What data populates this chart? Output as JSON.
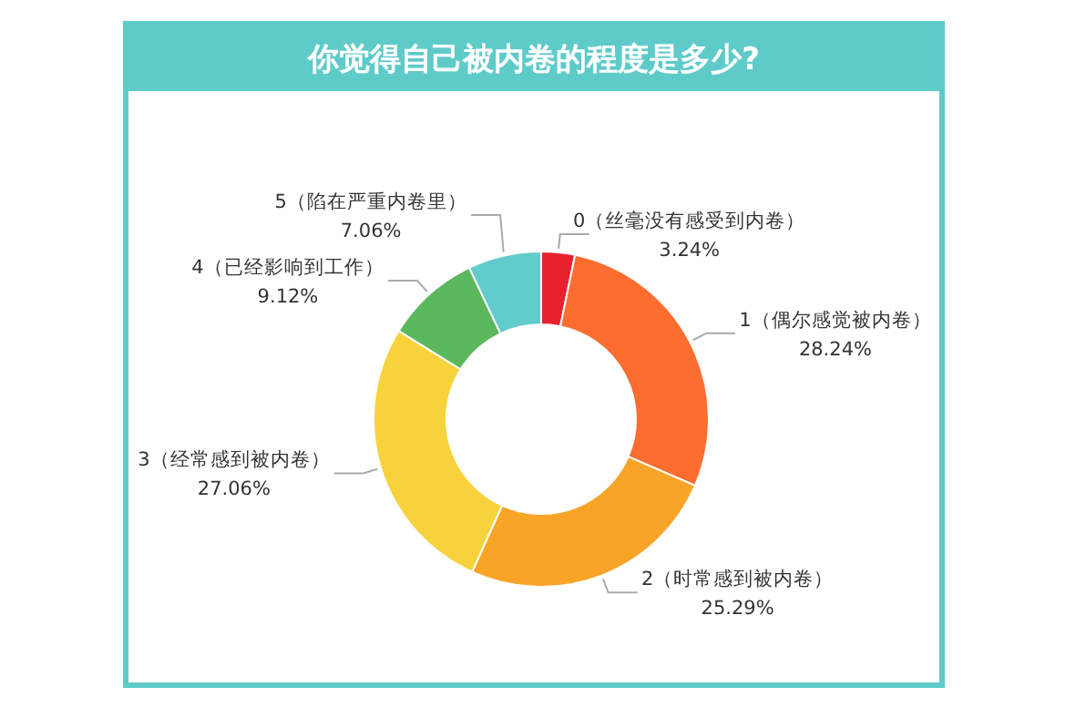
{
  "chart_data": {
    "type": "donut",
    "title": "你觉得自己被内卷的程度是多少?",
    "categories": [
      "0（丝毫没有感受到内卷）",
      "1（偶尔感觉被内卷）",
      "2（时常感到被内卷）",
      "3（经常感到被内卷）",
      "4（已经影响到工作）",
      "5（陷在严重内卷里）"
    ],
    "values": [
      3.24,
      28.24,
      25.29,
      27.06,
      9.12,
      7.06
    ],
    "colors": [
      "#e8212e",
      "#fc6d2f",
      "#f8a426",
      "#f8d23c",
      "#5cb85c",
      "#62cbcb"
    ],
    "value_labels": [
      "3.24%",
      "28.24%",
      "25.29%",
      "27.06%",
      "9.12%",
      "7.06%"
    ]
  }
}
